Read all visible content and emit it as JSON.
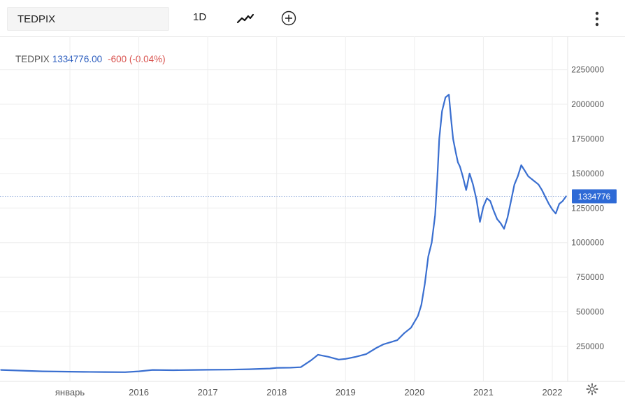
{
  "toolbar": {
    "symbol": "TEDPIX",
    "interval": "1D",
    "chart_type_icon": "line-chart-icon",
    "compare_icon": "add-compare-icon",
    "menu_icon": "more-vertical-icon"
  },
  "legend": {
    "symbol": "TEDPIX",
    "value": "1334776.00",
    "change": "-600 (-0.04%)"
  },
  "colors": {
    "line": "#3a6fd0",
    "price_label": "#2e6ad6",
    "change_negative": "#d9534f",
    "grid": "#eeeeee"
  },
  "chart_data": {
    "type": "line",
    "title": "",
    "xlabel": "",
    "ylabel": "",
    "ylim": [
      0,
      2400000
    ],
    "grid": true,
    "y_ticks": [
      250000,
      500000,
      750000,
      1000000,
      1250000,
      1500000,
      1750000,
      2000000,
      2250000
    ],
    "y_tick_labels": [
      "250000",
      "500000",
      "750000",
      "1000000",
      "1250000",
      "1500000",
      "1750000",
      "2000000",
      "2250000"
    ],
    "x_ticks": [
      2015.0,
      2016.0,
      2017.0,
      2018.0,
      2019.0,
      2020.0,
      2021.0,
      2022.0
    ],
    "x_tick_labels": [
      "январь",
      "2016",
      "2017",
      "2018",
      "2019",
      "2020",
      "2021",
      "2022"
    ],
    "last_price_label": "1334776",
    "last_price": 1334776,
    "series": [
      {
        "x": [
          2014.0,
          2014.3,
          2014.6,
          2014.9,
          2015.2,
          2015.5,
          2015.8,
          2016.0,
          2016.2,
          2016.5,
          2016.8,
          2017.0,
          2017.3,
          2017.6,
          2017.9,
          2018.0,
          2018.2,
          2018.35,
          2018.5,
          2018.6,
          2018.75,
          2018.9,
          2019.0,
          2019.15,
          2019.3,
          2019.45,
          2019.55,
          2019.65,
          2019.75,
          2019.85,
          2019.95,
          2020.05,
          2020.1,
          2020.15,
          2020.2,
          2020.25,
          2020.3,
          2020.33,
          2020.36,
          2020.4,
          2020.45,
          2020.5,
          2020.53,
          2020.56,
          2020.6,
          2020.63,
          2020.66,
          2020.7,
          2020.75,
          2020.8,
          2020.85,
          2020.9,
          2020.95,
          2021.0,
          2021.05,
          2021.1,
          2021.15,
          2021.2,
          2021.25,
          2021.3,
          2021.35,
          2021.4,
          2021.45,
          2021.5,
          2021.55,
          2021.6,
          2021.65,
          2021.7,
          2021.75,
          2021.8,
          2021.85,
          2021.9,
          2021.95,
          2022.0,
          2022.05,
          2022.1,
          2022.15,
          2022.2
        ],
        "y": [
          80000,
          75000,
          70000,
          68000,
          66000,
          65000,
          64000,
          70000,
          80000,
          78000,
          80000,
          81000,
          82000,
          85000,
          90000,
          95000,
          96000,
          100000,
          150000,
          190000,
          175000,
          155000,
          160000,
          175000,
          195000,
          240000,
          265000,
          280000,
          295000,
          345000,
          385000,
          470000,
          550000,
          700000,
          900000,
          1000000,
          1200000,
          1450000,
          1750000,
          1950000,
          2050000,
          2070000,
          1900000,
          1750000,
          1650000,
          1580000,
          1550000,
          1480000,
          1380000,
          1500000,
          1420000,
          1310000,
          1150000,
          1260000,
          1320000,
          1300000,
          1230000,
          1170000,
          1140000,
          1100000,
          1180000,
          1300000,
          1420000,
          1480000,
          1560000,
          1520000,
          1480000,
          1460000,
          1440000,
          1420000,
          1380000,
          1330000,
          1280000,
          1240000,
          1210000,
          1280000,
          1300000,
          1334776
        ]
      }
    ]
  }
}
